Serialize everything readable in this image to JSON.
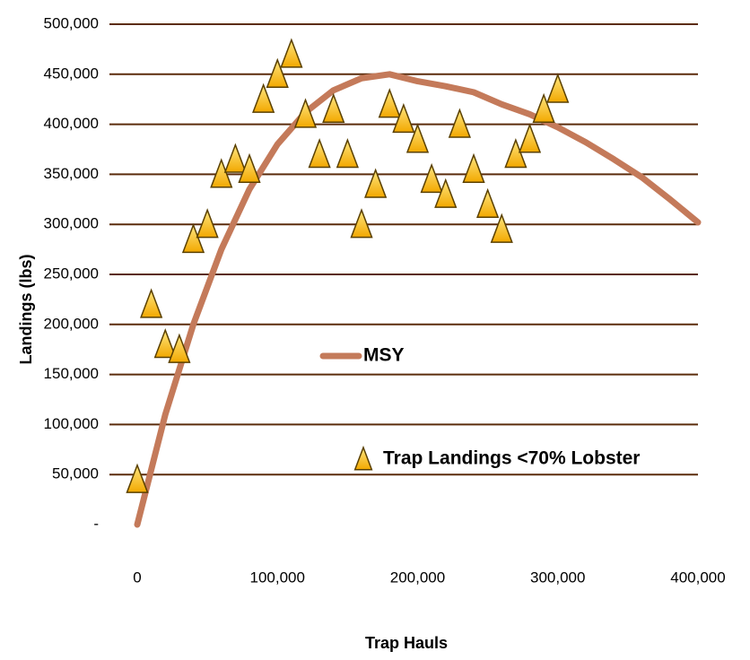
{
  "chart_data": {
    "type": "scatter",
    "x_label": "Trap Hauls",
    "y_label": "Landings (lbs)",
    "xlim": [
      0,
      400000
    ],
    "ylim": [
      0,
      500000
    ],
    "xticks": [
      0,
      {
        "value": 100000,
        "label": "100,000"
      },
      {
        "value": 200000,
        "label": "200,000"
      },
      {
        "value": 300000,
        "label": "300,000"
      },
      {
        "value": 400000,
        "label": "400,000"
      }
    ],
    "yticks": [
      {
        "value": 0,
        "label": "-"
      },
      {
        "value": 50000,
        "label": "50,000"
      },
      {
        "value": 100000,
        "label": "100,000"
      },
      {
        "value": 150000,
        "label": "150,000"
      },
      {
        "value": 200000,
        "label": "200,000"
      },
      {
        "value": 250000,
        "label": "250,000"
      },
      {
        "value": 300000,
        "label": "300,000"
      },
      {
        "value": 350000,
        "label": "350,000"
      },
      {
        "value": 400000,
        "label": "400,000"
      },
      {
        "value": 450000,
        "label": "450,000"
      },
      {
        "value": 500000,
        "label": "500,000"
      }
    ],
    "grid": true,
    "grid_color": "#5b2c0c",
    "legend": "center",
    "series": [
      {
        "name": "MSY",
        "type": "line",
        "color": "#c47a5a",
        "x": [
          0,
          20000,
          40000,
          60000,
          80000,
          100000,
          120000,
          140000,
          160000,
          180000,
          200000,
          220000,
          240000,
          260000,
          280000,
          300000,
          320000,
          340000,
          360000,
          380000,
          400000
        ],
        "values": [
          0,
          110000,
          200000,
          275000,
          335000,
          380000,
          412000,
          434000,
          446000,
          450000,
          443000,
          438000,
          432000,
          420000,
          410000,
          397000,
          382000,
          365000,
          347000,
          325000,
          302000
        ]
      },
      {
        "name": "Trap Landings <70% Lobster",
        "type": "scatter",
        "marker": "triangle",
        "color": "#ffc000",
        "x": [
          0,
          10000,
          20000,
          30000,
          40000,
          50000,
          60000,
          70000,
          80000,
          90000,
          100000,
          110000,
          120000,
          130000,
          140000,
          150000,
          160000,
          170000,
          180000,
          190000,
          200000,
          210000,
          220000,
          230000,
          240000,
          250000,
          260000,
          270000,
          280000,
          290000,
          300000
        ],
        "values": [
          45000,
          220000,
          180000,
          175000,
          285000,
          300000,
          350000,
          365000,
          355000,
          425000,
          450000,
          470000,
          410000,
          370000,
          415000,
          370000,
          300000,
          340000,
          420000,
          405000,
          385000,
          345000,
          330000,
          400000,
          355000,
          320000,
          295000,
          370000,
          385000,
          415000,
          435000
        ]
      }
    ]
  }
}
